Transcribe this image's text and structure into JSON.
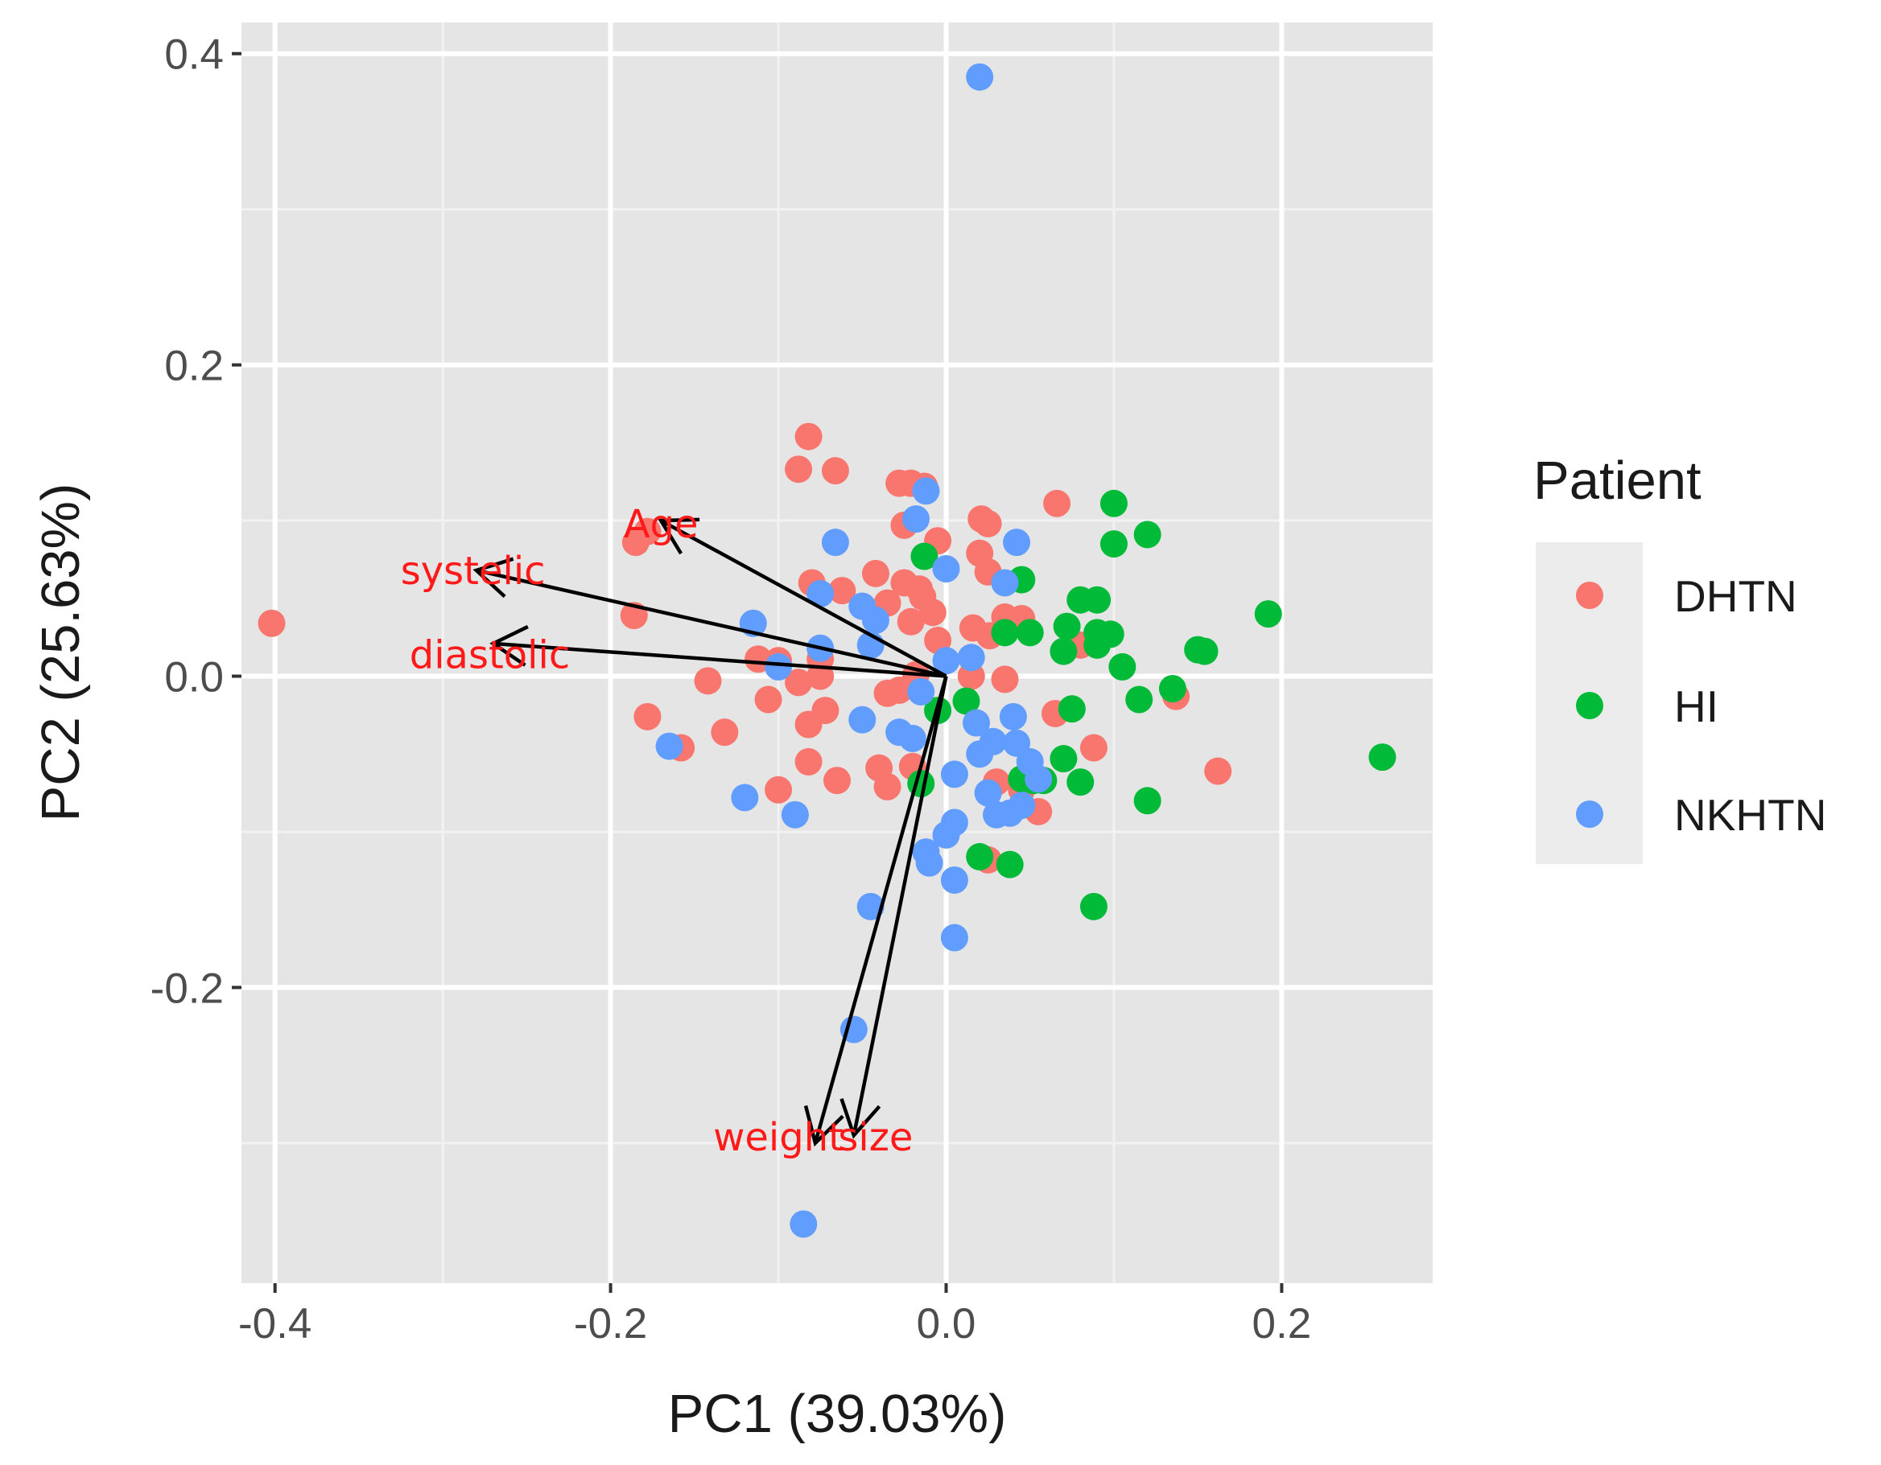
{
  "chart_data": {
    "type": "scatter",
    "xlabel": "PC1 (39.03%)",
    "ylabel": "PC2 (25.63%)",
    "xlim": [
      -0.42,
      0.29
    ],
    "ylim": [
      -0.39,
      0.42
    ],
    "xticks": [
      -0.4,
      -0.2,
      0.0,
      0.2
    ],
    "xtick_labels": [
      "-0.4",
      "-0.2",
      "0.0",
      "0.2"
    ],
    "yticks": [
      -0.2,
      0.0,
      0.2,
      0.4
    ],
    "ytick_labels": [
      "-0.2",
      "0.0",
      "0.2",
      "0.4"
    ],
    "grid": true,
    "legend": {
      "title": "Patient",
      "position": "right",
      "entries": [
        {
          "label": "DHTN",
          "color": "#F8766D"
        },
        {
          "label": "HI",
          "color": "#00BA38"
        },
        {
          "label": "NKHTN",
          "color": "#619CFF"
        }
      ]
    },
    "series": [
      {
        "name": "DHTN",
        "color": "#F8766D",
        "points": [
          [
            -0.402,
            0.034
          ],
          [
            -0.082,
            0.154
          ],
          [
            -0.088,
            0.133
          ],
          [
            -0.066,
            0.132
          ],
          [
            -0.028,
            0.124
          ],
          [
            -0.021,
            0.124
          ],
          [
            -0.013,
            0.122
          ],
          [
            0.021,
            0.101
          ],
          [
            0.025,
            0.098
          ],
          [
            0.066,
            0.111
          ],
          [
            -0.185,
            0.086
          ],
          [
            -0.178,
            0.093
          ],
          [
            -0.025,
            0.097
          ],
          [
            -0.005,
            0.087
          ],
          [
            0.02,
            0.079
          ],
          [
            0.025,
            0.067
          ],
          [
            -0.08,
            0.06
          ],
          [
            -0.062,
            0.055
          ],
          [
            -0.042,
            0.066
          ],
          [
            -0.035,
            0.047
          ],
          [
            -0.025,
            0.06
          ],
          [
            -0.014,
            0.051
          ],
          [
            -0.008,
            0.041
          ],
          [
            -0.016,
            0.056
          ],
          [
            -0.021,
            0.035
          ],
          [
            -0.005,
            0.023
          ],
          [
            0.016,
            0.031
          ],
          [
            0.026,
            0.026
          ],
          [
            0.035,
            0.038
          ],
          [
            0.045,
            0.037
          ],
          [
            -0.186,
            0.039
          ],
          [
            -0.112,
            0.011
          ],
          [
            -0.1,
            0.01
          ],
          [
            -0.075,
            0.011
          ],
          [
            -0.142,
            -0.003
          ],
          [
            -0.088,
            -0.004
          ],
          [
            -0.075,
            0.0
          ],
          [
            -0.035,
            -0.011
          ],
          [
            -0.028,
            -0.009
          ],
          [
            -0.018,
            0.001
          ],
          [
            0.015,
            0.0
          ],
          [
            0.035,
            -0.002
          ],
          [
            -0.106,
            -0.015
          ],
          [
            -0.072,
            -0.022
          ],
          [
            -0.178,
            -0.026
          ],
          [
            -0.132,
            -0.036
          ],
          [
            -0.082,
            -0.031
          ],
          [
            -0.158,
            -0.046
          ],
          [
            -0.082,
            -0.055
          ],
          [
            -0.065,
            -0.067
          ],
          [
            -0.04,
            -0.059
          ],
          [
            -0.035,
            -0.071
          ],
          [
            -0.02,
            -0.058
          ],
          [
            0.03,
            -0.068
          ],
          [
            0.045,
            -0.073
          ],
          [
            0.055,
            -0.087
          ],
          [
            -0.1,
            -0.073
          ],
          [
            0.025,
            -0.118
          ],
          [
            0.065,
            -0.024
          ],
          [
            0.088,
            -0.046
          ],
          [
            0.137,
            -0.013
          ],
          [
            0.162,
            -0.061
          ],
          [
            0.09,
            0.025
          ],
          [
            0.08,
            0.02
          ]
        ]
      },
      {
        "name": "HI",
        "color": "#00BA38",
        "points": [
          [
            0.1,
            0.111
          ],
          [
            0.12,
            0.091
          ],
          [
            0.1,
            0.085
          ],
          [
            -0.013,
            0.077
          ],
          [
            0.045,
            0.062
          ],
          [
            0.08,
            0.049
          ],
          [
            0.09,
            0.049
          ],
          [
            0.035,
            0.028
          ],
          [
            0.05,
            0.028
          ],
          [
            0.072,
            0.032
          ],
          [
            0.09,
            0.028
          ],
          [
            0.098,
            0.027
          ],
          [
            0.07,
            0.016
          ],
          [
            0.09,
            0.02
          ],
          [
            0.192,
            0.04
          ],
          [
            0.15,
            0.017
          ],
          [
            0.154,
            0.016
          ],
          [
            0.105,
            0.006
          ],
          [
            0.135,
            -0.008
          ],
          [
            0.115,
            -0.015
          ],
          [
            0.075,
            -0.021
          ],
          [
            0.012,
            -0.016
          ],
          [
            -0.005,
            -0.022
          ],
          [
            0.07,
            -0.053
          ],
          [
            0.045,
            -0.066
          ],
          [
            0.052,
            -0.067
          ],
          [
            0.058,
            -0.067
          ],
          [
            0.08,
            -0.068
          ],
          [
            0.12,
            -0.08
          ],
          [
            0.26,
            -0.052
          ],
          [
            -0.015,
            -0.069
          ],
          [
            0.02,
            -0.116
          ],
          [
            0.038,
            -0.121
          ],
          [
            0.088,
            -0.148
          ]
        ]
      },
      {
        "name": "NKHTN",
        "color": "#619CFF",
        "points": [
          [
            0.02,
            0.385
          ],
          [
            -0.012,
            0.119
          ],
          [
            -0.018,
            0.101
          ],
          [
            -0.066,
            0.086
          ],
          [
            0.042,
            0.086
          ],
          [
            0.0,
            0.069
          ],
          [
            -0.075,
            0.053
          ],
          [
            -0.05,
            0.045
          ],
          [
            -0.042,
            0.036
          ],
          [
            -0.115,
            0.034
          ],
          [
            -0.075,
            0.018
          ],
          [
            -0.1,
            0.006
          ],
          [
            -0.015,
            -0.01
          ],
          [
            0.0,
            0.01
          ],
          [
            0.015,
            0.012
          ],
          [
            -0.05,
            -0.028
          ],
          [
            -0.028,
            -0.036
          ],
          [
            -0.02,
            -0.04
          ],
          [
            0.018,
            -0.03
          ],
          [
            0.04,
            -0.026
          ],
          [
            0.028,
            -0.042
          ],
          [
            0.042,
            -0.043
          ],
          [
            -0.165,
            -0.045
          ],
          [
            0.02,
            -0.05
          ],
          [
            0.05,
            -0.055
          ],
          [
            0.005,
            -0.063
          ],
          [
            0.055,
            -0.066
          ],
          [
            -0.12,
            -0.078
          ],
          [
            0.025,
            -0.075
          ],
          [
            0.045,
            -0.083
          ],
          [
            -0.09,
            -0.089
          ],
          [
            0.03,
            -0.089
          ],
          [
            0.038,
            -0.088
          ],
          [
            0.005,
            -0.094
          ],
          [
            0.0,
            -0.102
          ],
          [
            -0.012,
            -0.113
          ],
          [
            -0.01,
            -0.12
          ],
          [
            0.005,
            -0.131
          ],
          [
            -0.045,
            -0.148
          ],
          [
            0.005,
            -0.168
          ],
          [
            -0.055,
            -0.227
          ],
          [
            -0.085,
            -0.352
          ],
          [
            0.035,
            0.06
          ],
          [
            -0.045,
            0.02
          ]
        ]
      }
    ],
    "loadings": [
      {
        "label": "Age",
        "x": -0.17,
        "y": 0.1
      },
      {
        "label": "systelic",
        "x": -0.28,
        "y": 0.068
      },
      {
        "label": "diastolic",
        "x": -0.27,
        "y": 0.021
      },
      {
        "label": "weight",
        "x": -0.078,
        "y": -0.3
      },
      {
        "label": "size",
        "x": -0.055,
        "y": -0.295
      }
    ],
    "loading_label_positions": [
      {
        "label": "Age",
        "x": -0.17,
        "y": 0.096
      },
      {
        "label": "systelic",
        "x": -0.282,
        "y": 0.066
      },
      {
        "label": "diastolic",
        "x": -0.272,
        "y": 0.012
      },
      {
        "label": "weight",
        "x": -0.1,
        "y": -0.298
      },
      {
        "label": "size",
        "x": -0.042,
        "y": -0.298
      }
    ]
  }
}
